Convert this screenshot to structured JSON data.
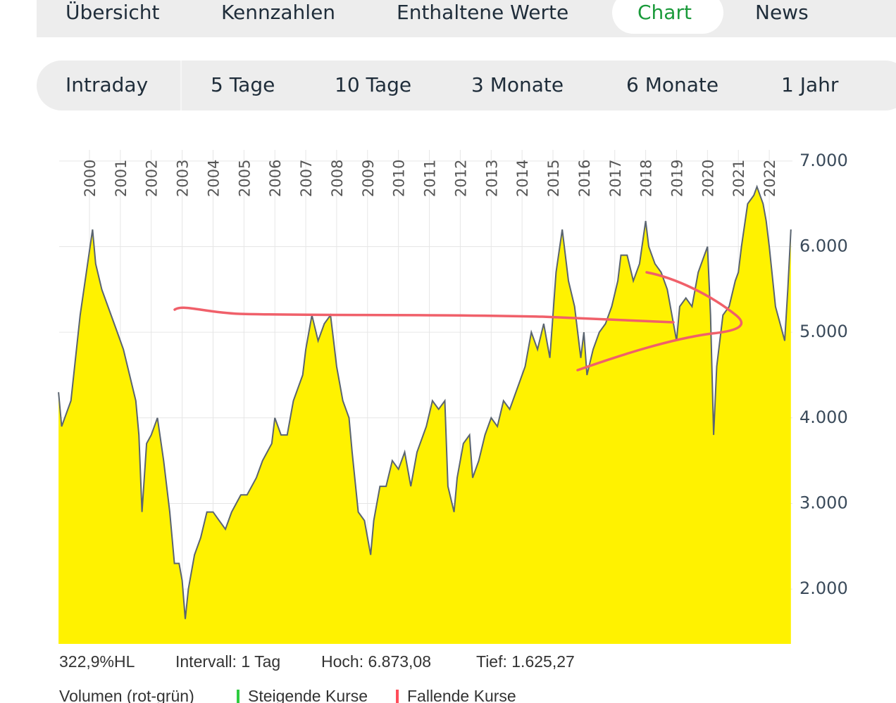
{
  "tabs": [
    "Übersicht",
    "Kennzahlen",
    "Enthaltene Werte",
    "Chart",
    "News"
  ],
  "active_tab": "Chart",
  "periods": [
    "Intraday",
    "5 Tage",
    "10 Tage",
    "3 Monate",
    "6 Monate",
    "1 Jahr"
  ],
  "footer": {
    "range": "322,9%HL",
    "interval": "Intervall: 1 Tag",
    "high": "Hoch:  6.873,08",
    "low": "Tief:  1.625,27",
    "volume": "Volumen (rot-grün)",
    "rising": "Steigende Kurse",
    "falling": "Fallende Kurse"
  },
  "chart_data": {
    "type": "area",
    "x": [
      1999.0,
      1999.1,
      1999.4,
      1999.7,
      1999.9,
      2000.1,
      2000.2,
      2000.4,
      2000.6,
      2000.9,
      2001.1,
      2001.3,
      2001.5,
      2001.6,
      2001.7,
      2001.85,
      2002.0,
      2002.2,
      2002.4,
      2002.6,
      2002.75,
      2002.9,
      2003.0,
      2003.1,
      2003.2,
      2003.4,
      2003.6,
      2003.8,
      2004.0,
      2004.2,
      2004.4,
      2004.6,
      2004.9,
      2005.1,
      2005.4,
      2005.6,
      2005.9,
      2006.0,
      2006.2,
      2006.4,
      2006.6,
      2006.9,
      2007.0,
      2007.2,
      2007.4,
      2007.6,
      2007.8,
      2007.9,
      2008.0,
      2008.2,
      2008.4,
      2008.5,
      2008.7,
      2008.9,
      2009.1,
      2009.2,
      2009.4,
      2009.6,
      2009.8,
      2010.0,
      2010.2,
      2010.4,
      2010.6,
      2010.9,
      2011.1,
      2011.3,
      2011.5,
      2011.6,
      2011.8,
      2011.9,
      2012.1,
      2012.3,
      2012.4,
      2012.6,
      2012.8,
      2013.0,
      2013.2,
      2013.4,
      2013.6,
      2013.9,
      2014.1,
      2014.3,
      2014.5,
      2014.7,
      2014.9,
      2015.0,
      2015.1,
      2015.3,
      2015.5,
      2015.7,
      2015.9,
      2016.0,
      2016.1,
      2016.3,
      2016.5,
      2016.7,
      2016.9,
      2017.1,
      2017.2,
      2017.4,
      2017.6,
      2017.8,
      2018.0,
      2018.1,
      2018.3,
      2018.5,
      2018.7,
      2018.9,
      2019.0,
      2019.1,
      2019.3,
      2019.5,
      2019.7,
      2019.9,
      2020.0,
      2020.1,
      2020.2,
      2020.3,
      2020.5,
      2020.7,
      2020.9,
      2021.0,
      2021.1,
      2021.3,
      2021.5,
      2021.6,
      2021.8,
      2021.9,
      2022.0,
      2022.2,
      2022.35,
      2022.5,
      2022.6,
      2022.7
    ],
    "series": [
      {
        "color": "#5a6470",
        "fill": "#fff200",
        "values": [
          4300,
          3900,
          4200,
          5200,
          5700,
          6200,
          5800,
          5500,
          5300,
          5000,
          4800,
          4500,
          4200,
          3800,
          2900,
          3700,
          3800,
          4000,
          3500,
          2900,
          2300,
          2300,
          2100,
          1650,
          2000,
          2400,
          2600,
          2900,
          2900,
          2800,
          2700,
          2900,
          3100,
          3100,
          3300,
          3500,
          3700,
          4000,
          3800,
          3800,
          4200,
          4500,
          4800,
          5200,
          4900,
          5100,
          5200,
          4900,
          4600,
          4200,
          4000,
          3600,
          2900,
          2800,
          2400,
          2800,
          3200,
          3200,
          3500,
          3400,
          3600,
          3200,
          3600,
          3900,
          4200,
          4100,
          4200,
          3200,
          2900,
          3300,
          3700,
          3800,
          3300,
          3500,
          3800,
          4000,
          3900,
          4200,
          4100,
          4400,
          4600,
          5000,
          4800,
          5100,
          4700,
          5200,
          5700,
          6200,
          5600,
          5300,
          4700,
          5000,
          4500,
          4800,
          5000,
          5100,
          5300,
          5600,
          5900,
          5900,
          5600,
          5800,
          6300,
          6000,
          5800,
          5700,
          5500,
          5100,
          4900,
          5300,
          5400,
          5300,
          5700,
          5900,
          6000,
          5200,
          3800,
          4600,
          5200,
          5300,
          5600,
          5700,
          6000,
          6500,
          6600,
          6700,
          6500,
          6300,
          6000,
          5300,
          5100,
          4900,
          5500,
          6200
        ]
      }
    ],
    "xlim": [
      1999.02,
      2022.75
    ],
    "xticks": [
      2000,
      2001,
      2002,
      2003,
      2004,
      2005,
      2006,
      2007,
      2008,
      2009,
      2010,
      2011,
      2012,
      2013,
      2014,
      2015,
      2016,
      2017,
      2018,
      2019,
      2020,
      2021,
      2022
    ],
    "ylim": [
      1360,
      7130
    ],
    "yticks": [
      {
        "value": 2000,
        "label": "2.000"
      },
      {
        "value": 3000,
        "label": "3.000"
      },
      {
        "value": 4000,
        "label": "4.000"
      },
      {
        "value": 5000,
        "label": "5.000"
      },
      {
        "value": 6000,
        "label": "6.000"
      },
      {
        "value": 7000,
        "label": "7.000"
      }
    ],
    "grid": true
  }
}
